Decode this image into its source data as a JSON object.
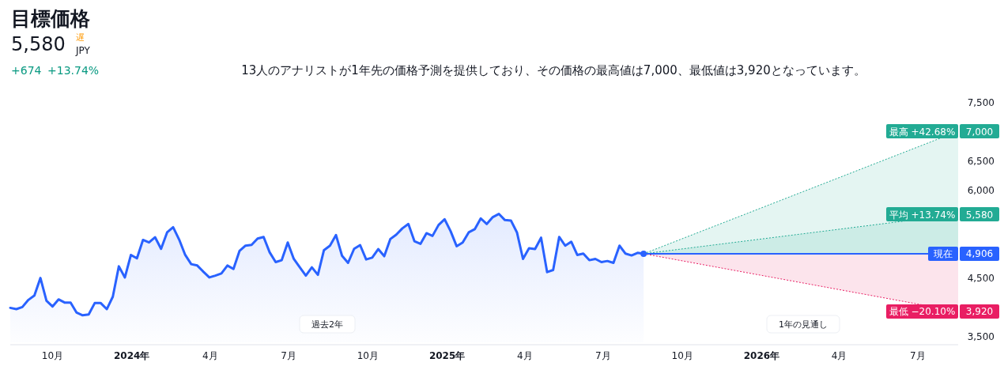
{
  "chart_data": {
    "type": "line",
    "title": "目標価格",
    "subtitle": "13人のアナリストが1年先の価格予測を提供しており、その価格の最高値は7,000、最低値は3,920となっています。",
    "annotations": [
      "5,580",
      "遅",
      "JPY",
      "+674",
      "+13.74%",
      "過去2年",
      "1年の見通し",
      {
        "text": "4,906",
        "x": "2026-08-17",
        "y": 4906
      }
    ],
    "legend": "right",
    "xlim": [
      "2023-08-13",
      "2026-08-17"
    ],
    "xticks": [
      {
        "value": "2023-10-01",
        "label": "10月"
      },
      {
        "value": "2024-01-01",
        "label": "2024年"
      },
      {
        "value": "2024-04-01",
        "label": "4月"
      },
      {
        "value": "2024-07-01",
        "label": "7月"
      },
      {
        "value": "2024-10-01",
        "label": "10月"
      },
      {
        "value": "2025-01-01",
        "label": "2025年"
      },
      {
        "value": "2025-04-01",
        "label": "4月"
      },
      {
        "value": "2025-07-01",
        "label": "7月"
      },
      {
        "value": "2025-10-01",
        "label": "10月"
      },
      {
        "value": "2026-01-01",
        "label": "2026年"
      },
      {
        "value": "2026-04-01",
        "label": "4月"
      },
      {
        "value": "2026-07-01",
        "label": "7月"
      }
    ],
    "ylim": [
      3500,
      7500
    ],
    "yticks": [
      {
        "value": 3500,
        "label": "3,500"
      },
      {
        "value": 4500,
        "label": "4,500"
      },
      {
        "value": 6000,
        "label": "6,000"
      },
      {
        "value": 6500,
        "label": "6,500"
      },
      {
        "value": 7000,
        "label": "7,000"
      },
      {
        "value": 7500,
        "label": "7,500"
      }
    ],
    "ref_lines": [
      {
        "axis": "y",
        "value": 4906,
        "label": "現在",
        "color": "#2962ff",
        "line_style": "solid"
      }
    ],
    "series": [
      {
        "type": "area",
        "color": "#2962ff",
        "x": [
          "2023-08-13",
          "2023-08-20",
          "2023-08-27",
          "2023-09-03",
          "2023-09-10",
          "2023-09-17",
          "2023-09-24",
          "2023-10-01",
          "2023-10-08",
          "2023-10-15",
          "2023-10-22",
          "2023-10-29",
          "2023-11-05",
          "2023-11-12",
          "2023-11-19",
          "2023-11-26",
          "2023-12-03",
          "2023-12-10",
          "2023-12-17",
          "2023-12-24",
          "2023-12-31",
          "2024-01-07",
          "2024-01-14",
          "2024-01-21",
          "2024-01-28",
          "2024-02-04",
          "2024-02-11",
          "2024-02-18",
          "2024-02-25",
          "2024-03-03",
          "2024-03-10",
          "2024-03-17",
          "2024-03-24",
          "2024-03-31",
          "2024-04-07",
          "2024-04-14",
          "2024-04-21",
          "2024-04-28",
          "2024-05-05",
          "2024-05-12",
          "2024-05-19",
          "2024-05-26",
          "2024-06-02",
          "2024-06-09",
          "2024-06-16",
          "2024-06-23",
          "2024-06-30",
          "2024-07-07",
          "2024-07-14",
          "2024-07-21",
          "2024-07-28",
          "2024-08-04",
          "2024-08-11",
          "2024-08-18",
          "2024-08-25",
          "2024-09-01",
          "2024-09-08",
          "2024-09-15",
          "2024-09-22",
          "2024-09-29",
          "2024-10-06",
          "2024-10-13",
          "2024-10-20",
          "2024-10-27",
          "2024-11-03",
          "2024-11-10",
          "2024-11-17",
          "2024-11-24",
          "2024-12-01",
          "2024-12-08",
          "2024-12-15",
          "2024-12-22",
          "2024-12-29",
          "2025-01-05",
          "2025-01-12",
          "2025-01-19",
          "2025-01-26",
          "2025-02-02",
          "2025-02-09",
          "2025-02-16",
          "2025-02-23",
          "2025-03-02",
          "2025-03-09",
          "2025-03-16",
          "2025-03-23",
          "2025-03-30",
          "2025-04-06",
          "2025-04-13",
          "2025-04-20",
          "2025-04-27",
          "2025-05-04",
          "2025-05-11",
          "2025-05-18",
          "2025-05-25",
          "2025-06-01",
          "2025-06-08",
          "2025-06-15",
          "2025-06-22",
          "2025-06-29",
          "2025-07-06",
          "2025-07-13",
          "2025-07-20",
          "2025-07-27",
          "2025-08-03",
          "2025-08-10",
          "2025-08-17"
        ],
        "values": [
          3981,
          3959,
          3995,
          4117,
          4193,
          4492,
          4103,
          4004,
          4126,
          4072,
          4072,
          3900,
          3854,
          3868,
          4063,
          4063,
          3959,
          4172,
          4691,
          4501,
          4886,
          4827,
          5143,
          5098,
          5189,
          4990,
          5271,
          5360,
          5148,
          4886,
          4728,
          4705,
          4600,
          4501,
          4533,
          4569,
          4705,
          4646,
          4953,
          5044,
          5058,
          5166,
          5193,
          4931,
          4763,
          4796,
          5098,
          4818,
          4674,
          4533,
          4674,
          4546,
          4967,
          5044,
          5225,
          4872,
          4750,
          4990,
          5054,
          4809,
          4840,
          4986,
          4864,
          5157,
          5234,
          5339,
          5415,
          5121,
          5075,
          5257,
          5211,
          5397,
          5496,
          5292,
          5035,
          5098,
          5271,
          5325,
          5510,
          5415,
          5533,
          5587,
          5482,
          5474,
          5271,
          4818,
          5000,
          4986,
          5180,
          4592,
          4628,
          5193,
          5044,
          5112,
          4886,
          4908,
          4796,
          4818,
          4763,
          4782,
          4750,
          5044,
          4908,
          4877,
          4922,
          4906
        ]
      },
      {
        "name": "最高 +42.68%",
        "color": "#22ab94",
        "line_style": "dotted",
        "x": [
          "2025-08-17",
          "2026-08-17"
        ],
        "values": [
          4906,
          7000
        ],
        "value_labels": [
          null,
          "7,000"
        ]
      },
      {
        "name": "平均 +13.74%",
        "color": "#22ab94",
        "line_style": "dotted",
        "x": [
          "2025-08-17",
          "2026-08-17"
        ],
        "values": [
          4906,
          5580
        ],
        "value_labels": [
          null,
          "5,580"
        ]
      },
      {
        "name": "最低 −20.10%",
        "color": "#e91e63",
        "line_style": "dotted",
        "x": [
          "2025-08-17",
          "2026-08-17"
        ],
        "values": [
          4906,
          3920
        ],
        "value_labels": [
          null,
          "3,920"
        ]
      }
    ]
  }
}
